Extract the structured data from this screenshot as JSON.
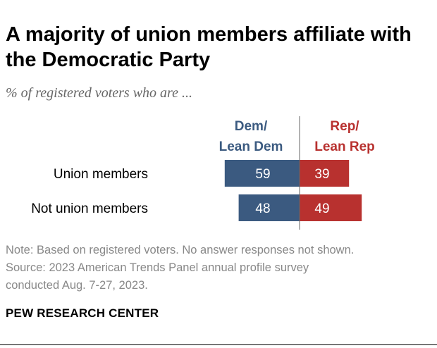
{
  "title": "A majority of union members affiliate with the Democratic Party",
  "subtitle": "% of registered voters who are ...",
  "chart_data": {
    "type": "bar",
    "orientation": "diverging-horizontal",
    "categories": [
      "Union members",
      "Not union members"
    ],
    "series": [
      {
        "name": "Dem/ Lean Dem",
        "name_lines": [
          "Dem/",
          "Lean Dem"
        ],
        "values": [
          59,
          48
        ],
        "color": "#3b5a80",
        "direction": "left"
      },
      {
        "name": "Rep/ Lean Rep",
        "name_lines": [
          "Rep/",
          "Lean Rep"
        ],
        "values": [
          39,
          49
        ],
        "color": "#b8312f",
        "direction": "right"
      }
    ],
    "data_labels": [
      [
        "59",
        "48"
      ],
      [
        "39",
        "49"
      ]
    ],
    "label_color": "#ffffff",
    "ylim": [
      0,
      100
    ],
    "grid": false,
    "legend": "column headers above bars"
  },
  "note": {
    "lines": [
      "Note: Based on registered voters. No answer responses not shown.",
      "Source: 2023 American Trends Panel annual profile survey",
      "conducted Aug. 7-27, 2023."
    ]
  },
  "brand": "PEW RESEARCH CENTER"
}
